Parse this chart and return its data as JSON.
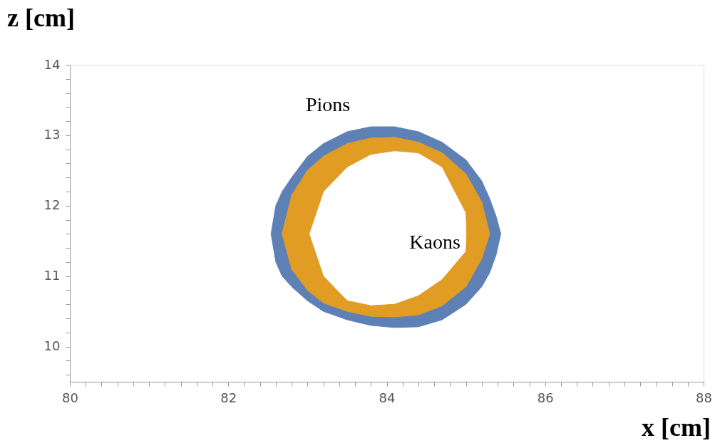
{
  "chart_data": {
    "type": "area",
    "xlabel": "x [cm]",
    "ylabel": "z [cm]",
    "xlim": [
      80,
      88
    ],
    "ylim": [
      9.5,
      14
    ],
    "xticks": [
      80,
      {
        "value": 80.2,
        "label": null
      },
      {
        "value": 80.4,
        "label": null
      },
      {
        "value": 80.6,
        "label": null
      },
      {
        "value": 80.8,
        "label": null
      },
      {
        "value": 81,
        "label": null
      },
      {
        "value": 81.2,
        "label": null
      },
      {
        "value": 81.4,
        "label": null
      },
      {
        "value": 81.6,
        "label": null
      },
      {
        "value": 81.8,
        "label": null
      },
      82,
      {
        "value": 82.2,
        "label": null
      },
      {
        "value": 82.4,
        "label": null
      },
      {
        "value": 82.6,
        "label": null
      },
      {
        "value": 82.8,
        "label": null
      },
      {
        "value": 83,
        "label": null
      },
      {
        "value": 83.2,
        "label": null
      },
      {
        "value": 83.4,
        "label": null
      },
      {
        "value": 83.6,
        "label": null
      },
      {
        "value": 83.8,
        "label": null
      },
      84,
      {
        "value": 84.2,
        "label": null
      },
      {
        "value": 84.4,
        "label": null
      },
      {
        "value": 84.6,
        "label": null
      },
      {
        "value": 84.8,
        "label": null
      },
      {
        "value": 85,
        "label": null
      },
      {
        "value": 85.2,
        "label": null
      },
      {
        "value": 85.4,
        "label": null
      },
      {
        "value": 85.6,
        "label": null
      },
      {
        "value": 85.8,
        "label": null
      },
      86,
      {
        "value": 86.2,
        "label": null
      },
      {
        "value": 86.4,
        "label": null
      },
      {
        "value": 86.6,
        "label": null
      },
      {
        "value": 86.8,
        "label": null
      },
      {
        "value": 87,
        "label": null
      },
      {
        "value": 87.2,
        "label": null
      },
      {
        "value": 87.4,
        "label": null
      },
      {
        "value": 87.6,
        "label": null
      },
      {
        "value": 87.8,
        "label": null
      },
      88
    ],
    "yticks": [
      {
        "value": 9.6,
        "label": null
      },
      {
        "value": 9.8,
        "label": null
      },
      10,
      {
        "value": 10.2,
        "label": null
      },
      {
        "value": 10.4,
        "label": null
      },
      {
        "value": 10.6,
        "label": null
      },
      {
        "value": 10.8,
        "label": null
      },
      11,
      {
        "value": 11.2,
        "label": null
      },
      {
        "value": 11.4,
        "label": null
      },
      {
        "value": 11.6,
        "label": null
      },
      {
        "value": 11.8,
        "label": null
      },
      12,
      {
        "value": 12.2,
        "label": null
      },
      {
        "value": 12.4,
        "label": null
      },
      {
        "value": 12.6,
        "label": null
      },
      {
        "value": 12.8,
        "label": null
      },
      13,
      {
        "value": 13.2,
        "label": null
      },
      {
        "value": 13.4,
        "label": null
      },
      {
        "value": 13.6,
        "label": null
      },
      {
        "value": 13.8,
        "label": null
      },
      14
    ],
    "grid": false,
    "series": [
      {
        "color": "#5e81b5",
        "x": [
          82.54,
          82.6,
          82.68,
          82.8,
          83.0,
          83.2,
          83.5,
          83.8,
          84.1,
          84.4,
          84.7,
          85.0,
          85.2,
          85.3,
          85.38,
          85.44,
          85.38,
          85.3,
          85.2,
          85.0,
          84.7,
          84.4,
          84.1,
          83.8,
          83.5,
          83.2,
          83.0,
          82.8,
          82.68,
          82.6,
          82.54,
          82.68,
          82.8,
          83.0,
          83.2,
          83.5,
          83.8,
          84.1,
          84.4,
          84.7,
          85.0,
          85.2,
          85.3,
          85.2,
          85.0,
          84.7,
          84.4,
          84.1,
          83.8,
          83.5,
          83.2,
          83.0,
          82.8,
          82.68,
          82.54
        ],
        "values": [
          11.6,
          12.0,
          12.2,
          12.4,
          12.7,
          12.88,
          13.05,
          13.12,
          13.12,
          13.05,
          12.9,
          12.65,
          12.35,
          12.1,
          11.85,
          11.6,
          11.3,
          11.05,
          10.85,
          10.6,
          10.38,
          10.28,
          10.27,
          10.3,
          10.38,
          10.5,
          10.65,
          10.85,
          11.0,
          11.2,
          11.6,
          11.6,
          11.1,
          10.8,
          10.62,
          10.5,
          10.43,
          10.42,
          10.45,
          10.58,
          10.85,
          11.25,
          11.6,
          12.05,
          12.45,
          12.75,
          12.9,
          12.97,
          12.96,
          12.88,
          12.7,
          12.5,
          12.15,
          11.6,
          11.6
        ]
      },
      {
        "color": "#e19c24",
        "x": [
          82.68,
          82.8,
          83.0,
          83.2,
          83.5,
          83.8,
          84.1,
          84.4,
          84.7,
          85.0,
          85.2,
          85.3,
          85.2,
          85.0,
          84.7,
          84.4,
          84.1,
          83.8,
          83.5,
          83.2,
          83.0,
          82.8,
          82.68,
          83.02,
          83.2,
          83.5,
          83.8,
          84.1,
          84.4,
          84.7,
          85.0,
          85.01,
          85.0,
          84.7,
          84.4,
          84.1,
          83.8,
          83.5,
          83.2,
          83.02,
          82.68
        ],
        "values": [
          11.6,
          12.15,
          12.5,
          12.7,
          12.88,
          12.96,
          12.97,
          12.9,
          12.75,
          12.45,
          12.05,
          11.6,
          11.25,
          10.85,
          10.58,
          10.45,
          10.42,
          10.43,
          10.5,
          10.62,
          10.8,
          11.1,
          11.6,
          11.6,
          11.0,
          10.65,
          10.58,
          10.6,
          10.72,
          10.95,
          11.35,
          11.6,
          11.9,
          12.55,
          12.75,
          12.78,
          12.73,
          12.55,
          12.2,
          11.6,
          11.6
        ]
      }
    ],
    "annotations": [
      "Pions",
      "Kaons"
    ]
  }
}
